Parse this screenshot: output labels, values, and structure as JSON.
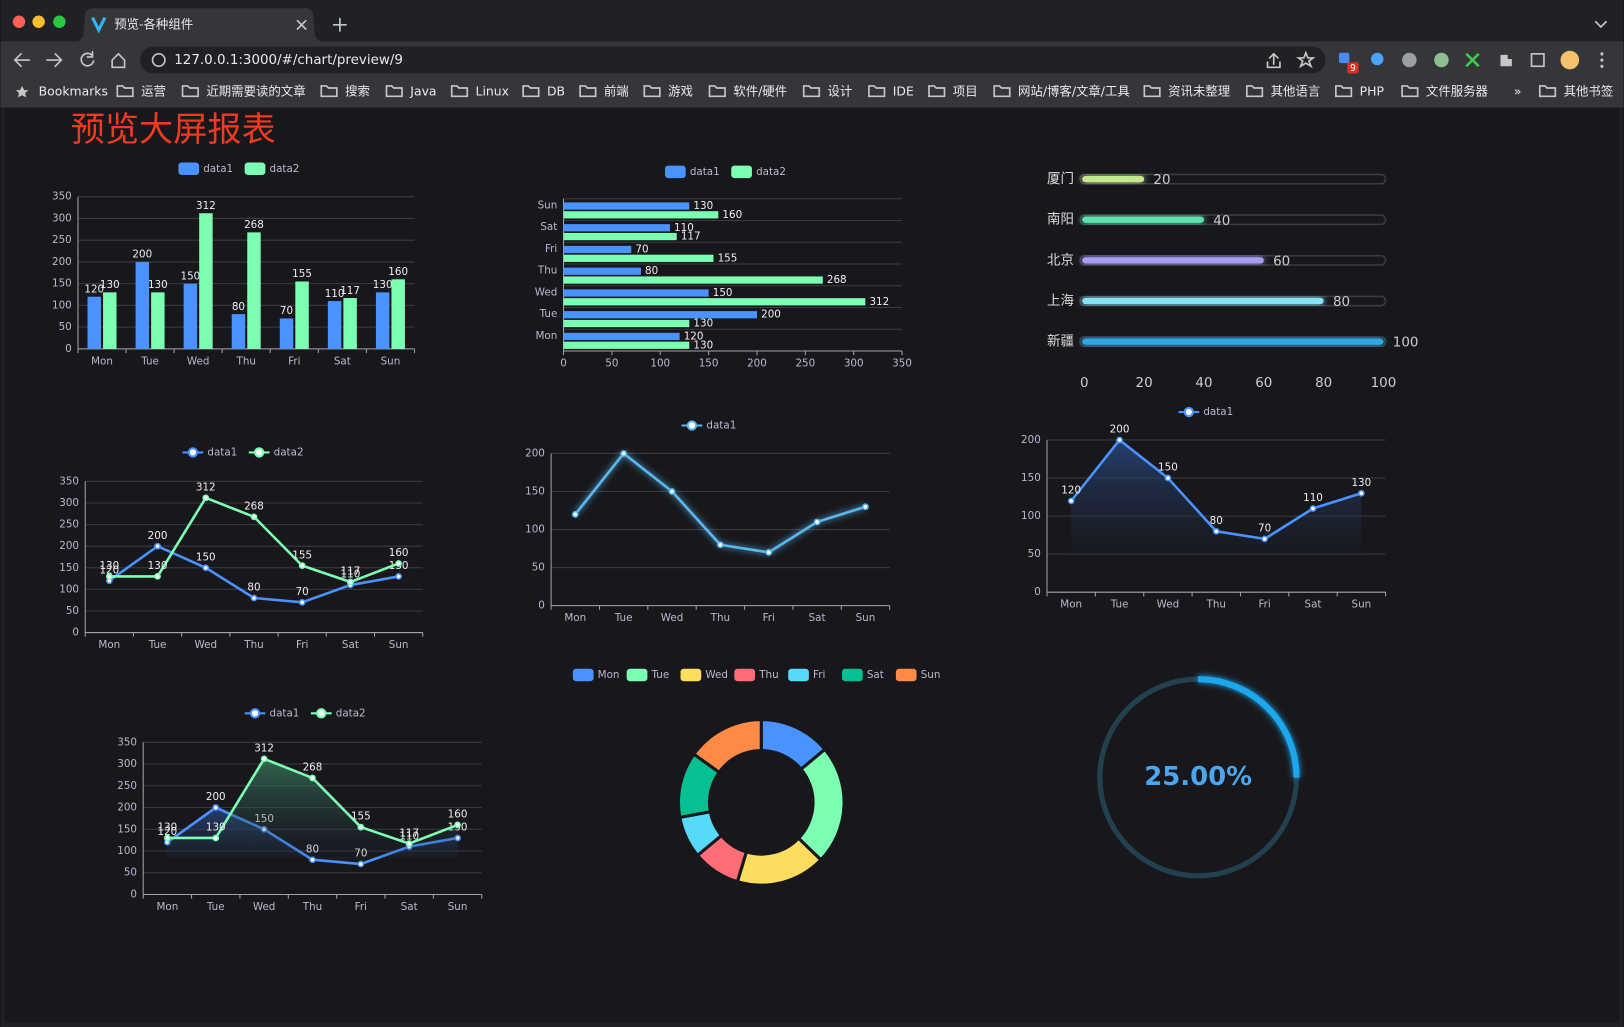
{
  "browser": {
    "tab_title": "预览-各种组件",
    "url": "127.0.0.1:3000/#/chart/preview/9",
    "extension_badge": "9",
    "bookmarks": [
      "Bookmarks",
      "运营",
      "近期需要读的文章",
      "搜索",
      "Java",
      "Linux",
      "DB",
      "前端",
      "游戏",
      "软件/硬件",
      "设计",
      "IDE",
      "项目",
      "网站/博客/文章/工具",
      "资讯未整理",
      "其他语言",
      "PHP",
      "文件服务器",
      "»",
      "其他书签"
    ]
  },
  "page_title": "预览大屏报表",
  "chart_data": [
    {
      "type": "bar",
      "orientation": "vertical",
      "categories": [
        "Mon",
        "Tue",
        "Wed",
        "Thu",
        "Fri",
        "Sat",
        "Sun"
      ],
      "series": [
        {
          "name": "data1",
          "color": "#4992ff",
          "values": [
            120,
            200,
            150,
            80,
            70,
            110,
            130
          ]
        },
        {
          "name": "data2",
          "color": "#7cffb2",
          "values": [
            130,
            130,
            312,
            268,
            155,
            117,
            160
          ]
        }
      ],
      "ylim": [
        0,
        350
      ],
      "yticks": [
        0,
        50,
        100,
        150,
        200,
        250,
        300,
        350
      ],
      "grid": true,
      "labels": true
    },
    {
      "type": "bar",
      "orientation": "horizontal",
      "categories": [
        "Mon",
        "Tue",
        "Wed",
        "Thu",
        "Fri",
        "Sat",
        "Sun"
      ],
      "series": [
        {
          "name": "data1",
          "color": "#4992ff",
          "values": [
            120,
            200,
            150,
            80,
            70,
            110,
            130
          ]
        },
        {
          "name": "data2",
          "color": "#7cffb2",
          "values": [
            130,
            130,
            312,
            268,
            155,
            117,
            160
          ]
        }
      ],
      "xlim": [
        0,
        350
      ],
      "xticks": [
        0,
        50,
        100,
        150,
        200,
        250,
        300,
        350
      ],
      "grid": false,
      "labels": true
    },
    {
      "type": "progress",
      "categories": [
        "厦门",
        "南阳",
        "北京",
        "上海",
        "新疆"
      ],
      "values": [
        20,
        40,
        60,
        80,
        100
      ],
      "colors": [
        "#c3e88d",
        "#5fe0b0",
        "#a59ef2",
        "#86e3f5",
        "#2fa9e4"
      ],
      "xlim": [
        0,
        100
      ],
      "xticks": [
        0,
        20,
        40,
        60,
        80,
        100
      ]
    },
    {
      "type": "line",
      "categories": [
        "Mon",
        "Tue",
        "Wed",
        "Thu",
        "Fri",
        "Sat",
        "Sun"
      ],
      "series": [
        {
          "name": "data1",
          "color": "#4992ff",
          "values": [
            120,
            200,
            150,
            80,
            70,
            110,
            130
          ]
        },
        {
          "name": "data2",
          "color": "#7cffb2",
          "values": [
            130,
            130,
            312,
            268,
            155,
            117,
            160
          ]
        }
      ],
      "ylim": [
        0,
        350
      ],
      "yticks": [
        0,
        50,
        100,
        150,
        200,
        250,
        300,
        350
      ],
      "grid": true,
      "labels": true,
      "area": false
    },
    {
      "type": "line",
      "categories": [
        "Mon",
        "Tue",
        "Wed",
        "Thu",
        "Fri",
        "Sat",
        "Sun"
      ],
      "series": [
        {
          "name": "data1",
          "color": "#5ab8ee",
          "values": [
            120,
            200,
            150,
            80,
            70,
            110,
            130
          ]
        }
      ],
      "ylim": [
        0,
        200
      ],
      "yticks": [
        0,
        50,
        100,
        150,
        200
      ],
      "grid": true,
      "labels": false,
      "area": false
    },
    {
      "type": "line",
      "categories": [
        "Mon",
        "Tue",
        "Wed",
        "Thu",
        "Fri",
        "Sat",
        "Sun"
      ],
      "series": [
        {
          "name": "data1",
          "color": "#4992ff",
          "values": [
            120,
            200,
            150,
            80,
            70,
            110,
            130
          ]
        }
      ],
      "ylim": [
        0,
        200
      ],
      "yticks": [
        0,
        50,
        100,
        150,
        200
      ],
      "grid": true,
      "labels": true,
      "area": true
    },
    {
      "type": "line",
      "categories": [
        "Mon",
        "Tue",
        "Wed",
        "Thu",
        "Fri",
        "Sat",
        "Sun"
      ],
      "series": [
        {
          "name": "data1",
          "color": "#4992ff",
          "values": [
            120,
            200,
            150,
            80,
            70,
            110,
            130
          ]
        },
        {
          "name": "data2",
          "color": "#7cffb2",
          "values": [
            130,
            130,
            312,
            268,
            155,
            117,
            160
          ]
        }
      ],
      "ylim": [
        0,
        350
      ],
      "yticks": [
        0,
        50,
        100,
        150,
        200,
        250,
        300,
        350
      ],
      "grid": true,
      "labels": true,
      "area": true
    },
    {
      "type": "pie",
      "donut": true,
      "categories": [
        "Mon",
        "Tue",
        "Wed",
        "Thu",
        "Fri",
        "Sat",
        "Sun"
      ],
      "values": [
        120,
        200,
        150,
        80,
        70,
        110,
        130
      ],
      "colors": [
        "#4992ff",
        "#7cffb2",
        "#fddd60",
        "#ff6e76",
        "#58d9f9",
        "#05c091",
        "#ff8a45"
      ]
    },
    {
      "type": "gauge",
      "values": [
        25
      ],
      "value_labels": [
        "25.00%"
      ],
      "ylim": [
        0,
        100
      ],
      "color": "#1ea7ec"
    }
  ]
}
